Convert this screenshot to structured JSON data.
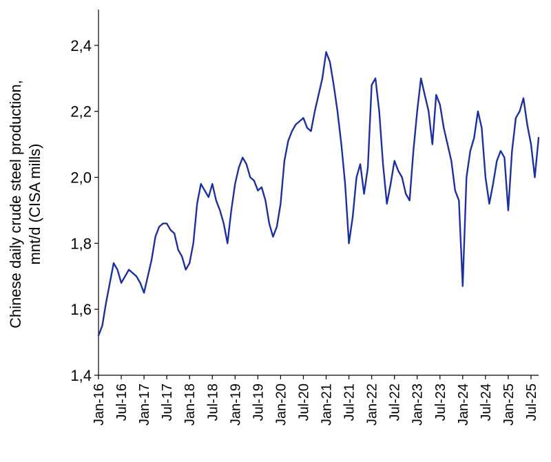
{
  "chart_data": {
    "type": "line",
    "title": "",
    "xlabel": "",
    "ylabel_lines": [
      "Chinese daily crude steel production,",
      "mnt/d (CISA mills)"
    ],
    "ylim": [
      1.4,
      2.5
    ],
    "yticks": [
      1.4,
      1.6,
      1.8,
      2.0,
      2.2,
      2.4
    ],
    "ytick_labels": [
      "1,4",
      "1,6",
      "1,8",
      "2,0",
      "2,2",
      "2,4"
    ],
    "xlim": [
      "2016-01",
      "2025-09"
    ],
    "x_categories": [
      "Jan-16",
      "Jul-16",
      "Jan-17",
      "Jul-17",
      "Jan-18",
      "Jul-18",
      "Jan-19",
      "Jul-19",
      "Jan-20",
      "Jul-20",
      "Jan-21",
      "Jul-21",
      "Jan-22",
      "Jul-22",
      "Jan-23",
      "Jul-23",
      "Jan-24",
      "Jul-24",
      "Jan-25",
      "Jul-25"
    ],
    "xtick_labels": [
      "Jan-16",
      "Jul-16",
      "Jan-17",
      "Jul-17",
      "Jan-18",
      "Jul-18",
      "Jan-19",
      "Jul-19",
      "Jan-20",
      "Jul-20",
      "Jan-21",
      "Jul-21",
      "Jan-22",
      "Jul-22",
      "Jan-23",
      "Jul-23",
      "Jan-24",
      "Jul-24",
      "Jan-25",
      "Jul-25"
    ],
    "series": [
      {
        "color": "#1a2fa0",
        "x": [
          "2016-01",
          "2016-02",
          "2016-03",
          "2016-04",
          "2016-05",
          "2016-06",
          "2016-07",
          "2016-08",
          "2016-09",
          "2016-10",
          "2016-11",
          "2016-12",
          "2017-01",
          "2017-02",
          "2017-03",
          "2017-04",
          "2017-05",
          "2017-06",
          "2017-07",
          "2017-08",
          "2017-09",
          "2017-10",
          "2017-11",
          "2017-12",
          "2018-01",
          "2018-02",
          "2018-03",
          "2018-04",
          "2018-05",
          "2018-06",
          "2018-07",
          "2018-08",
          "2018-09",
          "2018-10",
          "2018-11",
          "2018-12",
          "2019-01",
          "2019-02",
          "2019-03",
          "2019-04",
          "2019-05",
          "2019-06",
          "2019-07",
          "2019-08",
          "2019-09",
          "2019-10",
          "2019-11",
          "2019-12",
          "2020-01",
          "2020-02",
          "2020-03",
          "2020-04",
          "2020-05",
          "2020-06",
          "2020-07",
          "2020-08",
          "2020-09",
          "2020-10",
          "2020-11",
          "2020-12",
          "2021-01",
          "2021-02",
          "2021-03",
          "2021-04",
          "2021-05",
          "2021-06",
          "2021-07",
          "2021-08",
          "2021-09",
          "2021-10",
          "2021-11",
          "2021-12",
          "2022-01",
          "2022-02",
          "2022-03",
          "2022-04",
          "2022-05",
          "2022-06",
          "2022-07",
          "2022-08",
          "2022-09",
          "2022-10",
          "2022-11",
          "2022-12",
          "2023-01",
          "2023-02",
          "2023-03",
          "2023-04",
          "2023-05",
          "2023-06",
          "2023-07",
          "2023-08",
          "2023-09",
          "2023-10",
          "2023-11",
          "2023-12",
          "2024-01",
          "2024-02",
          "2024-03",
          "2024-04",
          "2024-05",
          "2024-06",
          "2024-07",
          "2024-08",
          "2024-09",
          "2024-10",
          "2024-11",
          "2024-12",
          "2025-01",
          "2025-02",
          "2025-03",
          "2025-04",
          "2025-05",
          "2025-06",
          "2025-07",
          "2025-08",
          "2025-09"
        ],
        "values": [
          1.52,
          1.55,
          1.62,
          1.68,
          1.74,
          1.72,
          1.68,
          1.7,
          1.72,
          1.71,
          1.7,
          1.68,
          1.65,
          1.7,
          1.75,
          1.82,
          1.85,
          1.86,
          1.86,
          1.84,
          1.83,
          1.78,
          1.76,
          1.72,
          1.74,
          1.8,
          1.92,
          1.98,
          1.96,
          1.94,
          1.98,
          1.93,
          1.9,
          1.86,
          1.8,
          1.9,
          1.98,
          2.03,
          2.06,
          2.04,
          2.0,
          1.99,
          1.96,
          1.97,
          1.93,
          1.86,
          1.82,
          1.85,
          1.92,
          2.05,
          2.11,
          2.14,
          2.16,
          2.17,
          2.18,
          2.15,
          2.14,
          2.2,
          2.25,
          2.3,
          2.38,
          2.35,
          2.28,
          2.2,
          2.1,
          1.98,
          1.8,
          1.88,
          2.0,
          2.04,
          1.95,
          2.03,
          2.28,
          2.3,
          2.2,
          2.04,
          1.92,
          1.98,
          2.05,
          2.02,
          2.0,
          1.95,
          1.93,
          2.08,
          2.2,
          2.3,
          2.25,
          2.2,
          2.1,
          2.25,
          2.22,
          2.15,
          2.1,
          2.05,
          1.96,
          1.93,
          1.67,
          2.0,
          2.08,
          2.12,
          2.2,
          2.15,
          2.0,
          1.92,
          1.98,
          2.05,
          2.08,
          2.06,
          1.9,
          2.08,
          2.18,
          2.2,
          2.24,
          2.16,
          2.1,
          2.0,
          2.12
        ]
      }
    ],
    "grid": false,
    "legend": "none"
  }
}
